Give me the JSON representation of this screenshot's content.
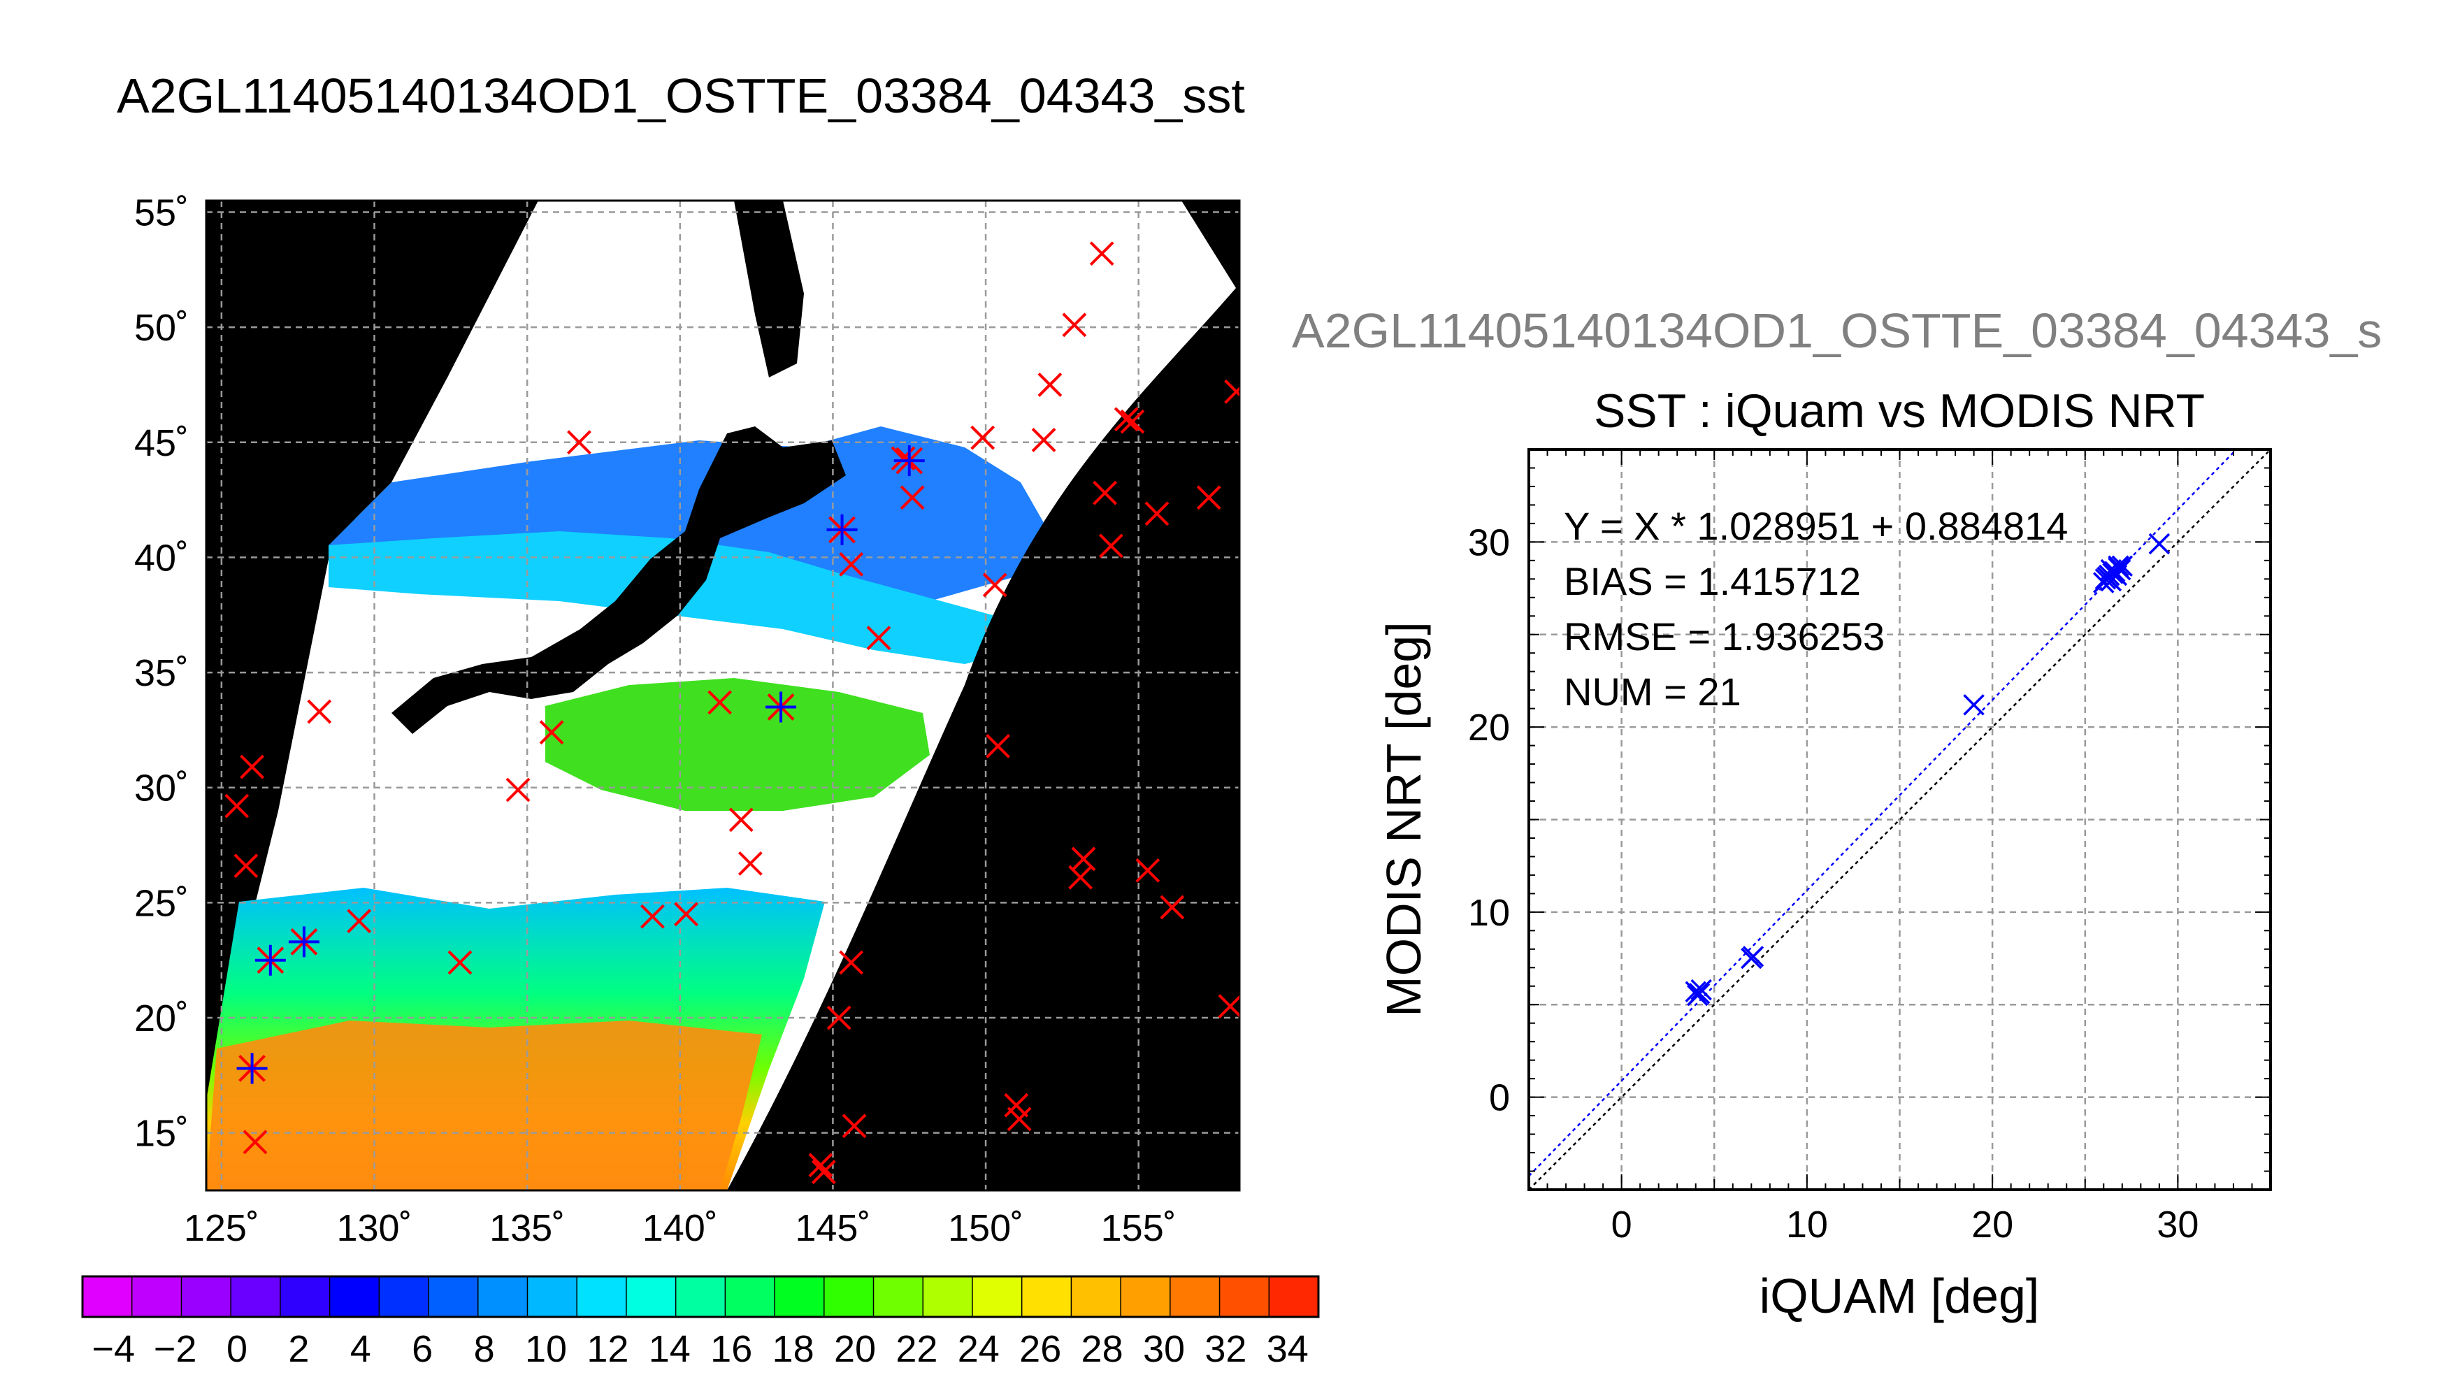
{
  "colors": {
    "land": "#000000",
    "cloud": "#ffffff",
    "insitu_marker": "#ff0000",
    "matchup_marker": "#0000ff",
    "fit_line": "#0000ff",
    "one_to_one_line": "#000000",
    "subtitle_gray": "#808080",
    "grid": "#9a9a9a"
  },
  "chart_data": [
    {
      "type": "map",
      "title": "A2GL11405140134OD1_OSTTE_03384_04343_sst",
      "lon_ticks": [
        "125˚",
        "130˚",
        "135˚",
        "140˚",
        "145˚",
        "150˚",
        "155˚"
      ],
      "lat_ticks": [
        "55˚",
        "50˚",
        "45˚",
        "40˚",
        "35˚",
        "30˚",
        "25˚",
        "20˚",
        "15˚"
      ],
      "lon_range": [
        124.5,
        158.3
      ],
      "lat_range": [
        12.5,
        55.5
      ],
      "grid": true,
      "colorbar": {
        "ticks": [
          "−4",
          "−2",
          "0",
          "2",
          "4",
          "6",
          "8",
          "10",
          "12",
          "14",
          "16",
          "18",
          "20",
          "22",
          "24",
          "26",
          "28",
          "30",
          "32",
          "34"
        ],
        "range": [
          -5,
          35
        ],
        "colors": [
          "#e000ff",
          "#c000ff",
          "#9a00ff",
          "#6a00ff",
          "#3000ff",
          "#0000ff",
          "#0030ff",
          "#0060ff",
          "#0090ff",
          "#00b8ff",
          "#00e0ff",
          "#00ffe0",
          "#00ffa0",
          "#00ff60",
          "#00ff20",
          "#30ff00",
          "#70ff00",
          "#b0ff00",
          "#e0ff00",
          "#ffe000",
          "#ffc000",
          "#ffa000",
          "#ff7800",
          "#ff5000",
          "#ff2800"
        ]
      },
      "insitu_points": [
        {
          "lon": 126.0,
          "lat": 30.9
        },
        {
          "lon": 125.5,
          "lat": 29.2
        },
        {
          "lon": 125.8,
          "lat": 26.6
        },
        {
          "lon": 128.2,
          "lat": 33.3
        },
        {
          "lon": 129.5,
          "lat": 24.2
        },
        {
          "lon": 132.8,
          "lat": 22.4
        },
        {
          "lon": 134.7,
          "lat": 29.9
        },
        {
          "lon": 135.8,
          "lat": 32.4
        },
        {
          "lon": 136.7,
          "lat": 45.0
        },
        {
          "lon": 139.1,
          "lat": 24.4
        },
        {
          "lon": 140.2,
          "lat": 24.5
        },
        {
          "lon": 141.3,
          "lat": 33.7
        },
        {
          "lon": 142.0,
          "lat": 28.6
        },
        {
          "lon": 142.3,
          "lat": 26.7
        },
        {
          "lon": 145.6,
          "lat": 39.7
        },
        {
          "lon": 145.6,
          "lat": 22.4
        },
        {
          "lon": 145.2,
          "lat": 20.0
        },
        {
          "lon": 145.7,
          "lat": 15.3
        },
        {
          "lon": 144.6,
          "lat": 13.6
        },
        {
          "lon": 144.7,
          "lat": 13.3
        },
        {
          "lon": 146.5,
          "lat": 36.5
        },
        {
          "lon": 147.3,
          "lat": 44.3
        },
        {
          "lon": 147.6,
          "lat": 42.6
        },
        {
          "lon": 149.9,
          "lat": 45.2
        },
        {
          "lon": 150.3,
          "lat": 38.8
        },
        {
          "lon": 150.4,
          "lat": 31.8
        },
        {
          "lon": 151.0,
          "lat": 16.2
        },
        {
          "lon": 151.1,
          "lat": 15.6
        },
        {
          "lon": 151.9,
          "lat": 45.1
        },
        {
          "lon": 152.1,
          "lat": 47.5
        },
        {
          "lon": 152.9,
          "lat": 50.1
        },
        {
          "lon": 153.2,
          "lat": 26.9
        },
        {
          "lon": 153.1,
          "lat": 26.1
        },
        {
          "lon": 153.8,
          "lat": 53.2
        },
        {
          "lon": 153.9,
          "lat": 42.8
        },
        {
          "lon": 154.1,
          "lat": 40.5
        },
        {
          "lon": 154.6,
          "lat": 46.0
        },
        {
          "lon": 154.8,
          "lat": 45.9
        },
        {
          "lon": 155.3,
          "lat": 26.4
        },
        {
          "lon": 155.6,
          "lat": 41.9
        },
        {
          "lon": 156.1,
          "lat": 24.8
        },
        {
          "lon": 157.3,
          "lat": 42.6
        },
        {
          "lon": 158.2,
          "lat": 47.2
        },
        {
          "lon": 158.0,
          "lat": 20.5
        },
        {
          "lon": 126.1,
          "lat": 14.6
        }
      ],
      "matchup_points": [
        {
          "lon": 126.6,
          "lat": 22.5
        },
        {
          "lon": 127.7,
          "lat": 23.3
        },
        {
          "lon": 126.0,
          "lat": 17.8
        },
        {
          "lon": 143.3,
          "lat": 33.5
        },
        {
          "lon": 145.3,
          "lat": 41.2
        },
        {
          "lon": 147.5,
          "lat": 44.2
        }
      ]
    },
    {
      "type": "scatter",
      "subtitle": "A2GL11405140134OD1_OSTTE_03384_04343_s",
      "title": "SST : iQuam vs MODIS NRT",
      "xlabel": "iQUAM [deg]",
      "ylabel": "MODIS NRT [deg]",
      "xlim": [
        -5,
        35
      ],
      "ylim": [
        -5,
        35
      ],
      "xticks": [
        "0",
        "10",
        "20",
        "30"
      ],
      "yticks": [
        "0",
        "10",
        "20",
        "30"
      ],
      "grid": true,
      "stats": [
        "Y = X * 1.028951 + 0.884814",
        "BIAS = 1.415712",
        "RMSE = 1.936253",
        "NUM = 21"
      ],
      "fit": {
        "slope": 1.028951,
        "intercept": 0.884814
      },
      "points": [
        {
          "x": 4.0,
          "y": 5.7
        },
        {
          "x": 4.2,
          "y": 5.6
        },
        {
          "x": 4.3,
          "y": 5.8
        },
        {
          "x": 4.1,
          "y": 5.5
        },
        {
          "x": 7.0,
          "y": 7.5
        },
        {
          "x": 7.1,
          "y": 7.6
        },
        {
          "x": 19.0,
          "y": 21.2
        },
        {
          "x": 26.1,
          "y": 28.0
        },
        {
          "x": 26.3,
          "y": 28.2
        },
        {
          "x": 26.4,
          "y": 27.9
        },
        {
          "x": 26.5,
          "y": 28.3
        },
        {
          "x": 26.2,
          "y": 28.1
        },
        {
          "x": 26.8,
          "y": 28.6
        },
        {
          "x": 26.9,
          "y": 28.5
        },
        {
          "x": 27.0,
          "y": 28.7
        },
        {
          "x": 26.6,
          "y": 28.4
        },
        {
          "x": 26.7,
          "y": 28.2
        },
        {
          "x": 26.0,
          "y": 27.8
        },
        {
          "x": 26.4,
          "y": 28.5
        },
        {
          "x": 26.8,
          "y": 28.7
        },
        {
          "x": 29.0,
          "y": 29.9
        }
      ]
    }
  ]
}
